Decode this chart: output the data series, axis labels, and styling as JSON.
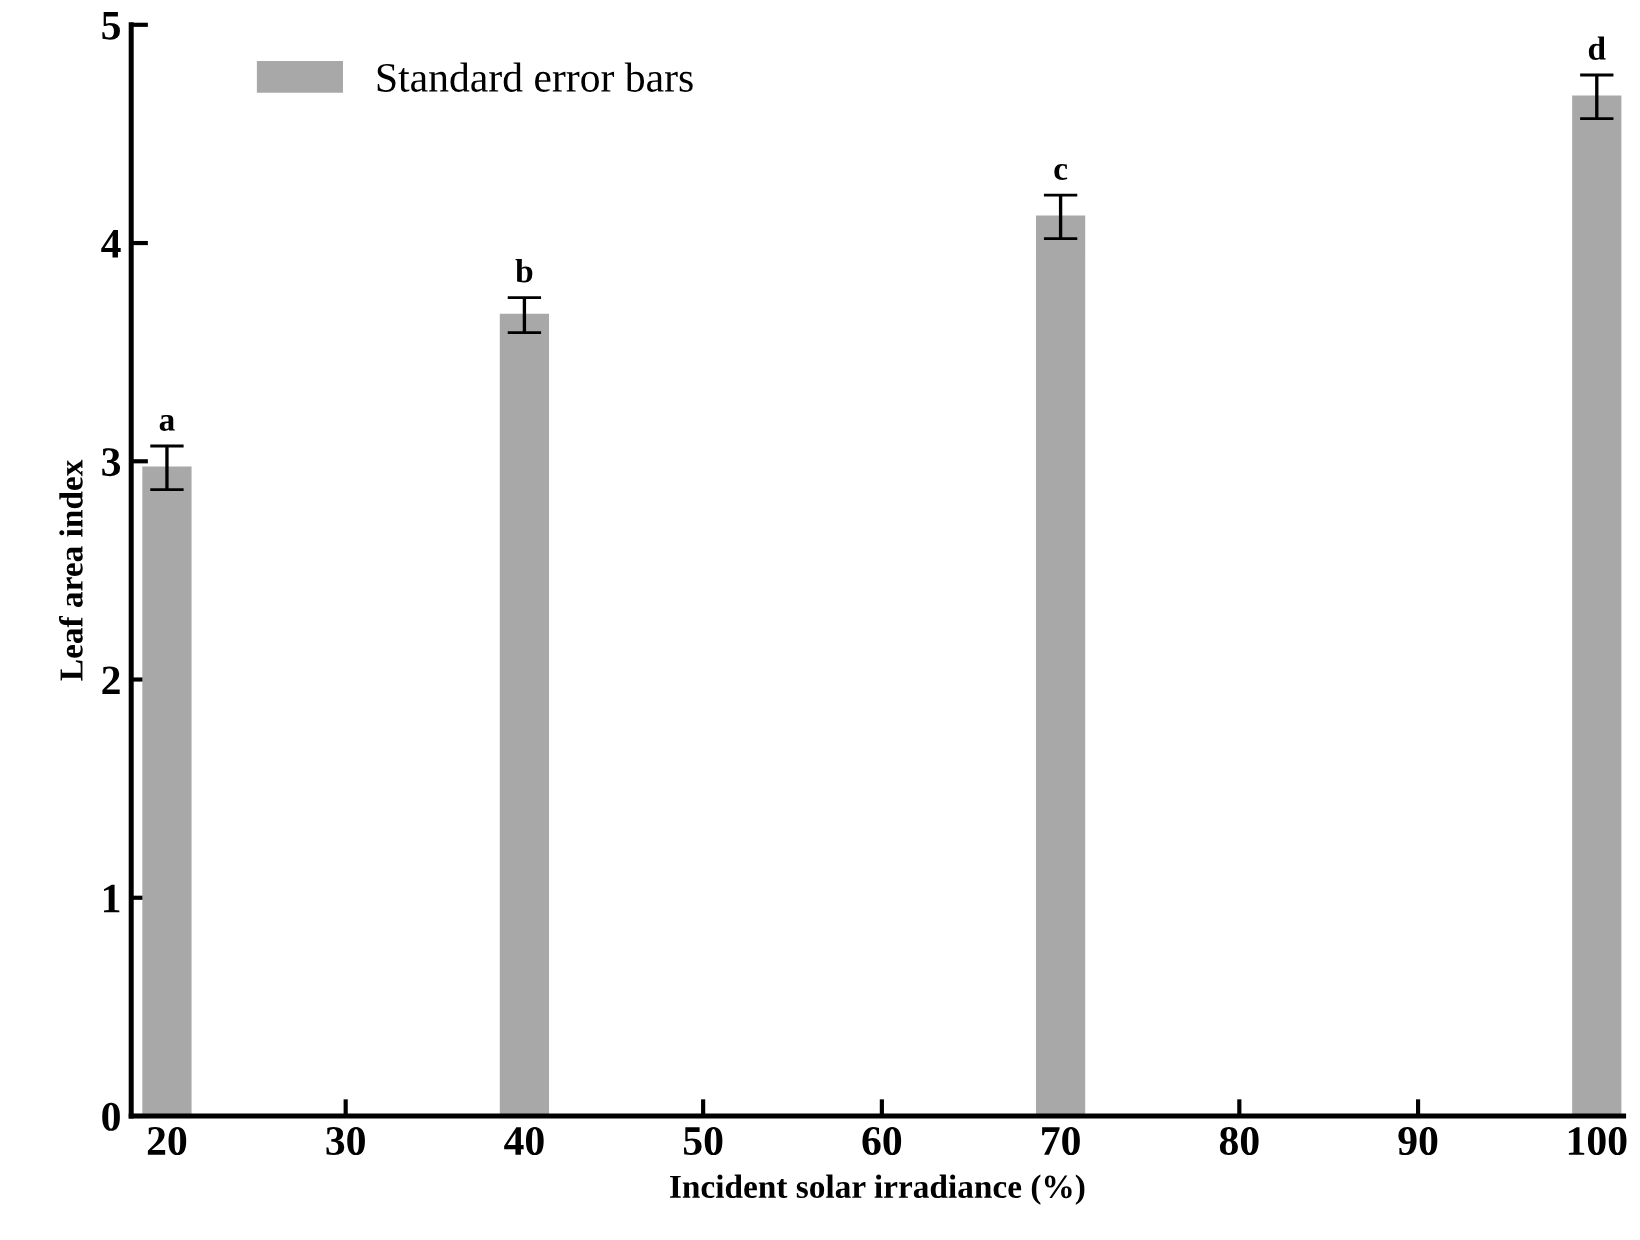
{
  "chart_data": {
    "type": "bar",
    "xlabel": "Incident solar irradiance (%)",
    "ylabel": "Leaf area index",
    "x": [
      20,
      40,
      70,
      100
    ],
    "series": [
      {
        "name": "Standard error bars",
        "color": "#a8a8a8",
        "values": [
          2.97,
          3.67,
          4.12,
          4.67
        ],
        "errors": [
          0.1,
          0.08,
          0.1,
          0.1
        ]
      }
    ],
    "annotations": [
      {
        "text": "a",
        "x": 20,
        "y": 3.07
      },
      {
        "text": "b",
        "x": 40,
        "y": 3.75
      },
      {
        "text": "c",
        "x": 70,
        "y": 4.22
      },
      {
        "text": "d",
        "x": 100,
        "y": 4.77
      }
    ],
    "xlim": [
      18,
      101.5
    ],
    "ylim": [
      0,
      5
    ],
    "xticks": [
      20,
      30,
      40,
      50,
      60,
      70,
      80,
      90,
      100
    ],
    "yticks": [
      0,
      1,
      2,
      3,
      4,
      5
    ],
    "legend": "top left",
    "grid": false
  }
}
